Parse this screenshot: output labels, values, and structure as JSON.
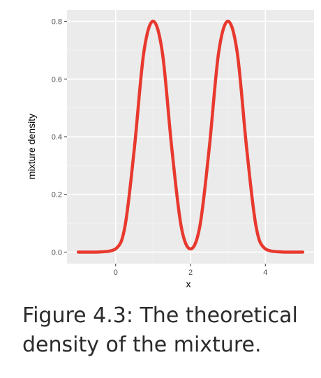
{
  "caption": "Figure 4.3: The theoretical density of the mixture.",
  "chart_data": {
    "type": "line",
    "xlabel": "x",
    "ylabel": "mixture density",
    "xlim": [
      -1,
      5
    ],
    "ylim": [
      0,
      0.8
    ],
    "x_ticks": [
      0,
      2,
      4
    ],
    "y_ticks": [
      0.0,
      0.2,
      0.4,
      0.6,
      0.8
    ],
    "y_tick_labels": [
      "0.0",
      "0.2",
      "0.4",
      "0.6",
      "0.8"
    ],
    "grid": true,
    "panel_background": "#ebebeb",
    "series": [
      {
        "color": "#e8392e",
        "x": [
          -1.0,
          -0.5,
          0.0,
          0.25,
          0.5,
          0.75,
          1.0,
          1.25,
          1.5,
          1.75,
          2.0,
          2.25,
          2.5,
          2.75,
          3.0,
          3.25,
          3.5,
          3.75,
          4.0,
          4.5,
          5.0
        ],
        "y": [
          0.0,
          0.0,
          0.011,
          0.09,
          0.36,
          0.69,
          0.8,
          0.69,
          0.36,
          0.09,
          0.011,
          0.09,
          0.36,
          0.69,
          0.8,
          0.69,
          0.36,
          0.09,
          0.011,
          0.0,
          0.0
        ]
      }
    ]
  }
}
